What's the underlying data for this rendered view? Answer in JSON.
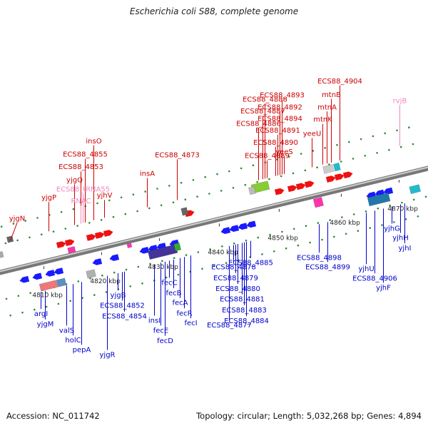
{
  "title": "Escherichia coli S88, complete genome",
  "footer": {
    "accession": "Accession: NC_011742",
    "stats": "Topology: circular; Length: 5,032,268 bp; Genes: 4,894"
  },
  "colors": {
    "forward_label": "#cc0000",
    "reverse_label": "#0000cc",
    "rna_label": "#ee88bb",
    "axis": "#888888"
  },
  "ticks": [
    {
      "label": "4810 kbp",
      "t": 0.1
    },
    {
      "label": "4820 kbp",
      "t": 0.235
    },
    {
      "label": "4830 kbp",
      "t": 0.37
    },
    {
      "label": "4840 kbp",
      "t": 0.51
    },
    {
      "label": "4850 kbp",
      "t": 0.65
    },
    {
      "label": "4860 kbp",
      "t": 0.795
    },
    {
      "label": "4870 kbp",
      "t": 0.93
    }
  ],
  "forward_labels": [
    {
      "text": "yjgN",
      "t": 0.04
    },
    {
      "text": "yjgP",
      "t": 0.13
    },
    {
      "text": "yjgQ",
      "t": 0.19
    },
    {
      "text": "ECS88_4853",
      "t": 0.205
    },
    {
      "text": "ECS88_4855",
      "t": 0.215
    },
    {
      "text": "insO",
      "t": 0.235
    },
    {
      "text": "yjhV",
      "t": 0.26
    },
    {
      "text": "insA",
      "t": 0.36
    },
    {
      "text": "ECS88_4873",
      "t": 0.43
    },
    {
      "text": "ECS88_4894",
      "t": 0.67
    },
    {
      "text": "ECS88_4891",
      "t": 0.665
    },
    {
      "text": "ECS88_4890",
      "t": 0.66
    },
    {
      "text": "yeeS",
      "t": 0.68
    },
    {
      "text": "ECS88_4889",
      "t": 0.64
    },
    {
      "text": "ECS88_4888",
      "t": 0.635
    },
    {
      "text": "ECS88_4893",
      "t": 0.675
    },
    {
      "text": "ECS88_4887",
      "t": 0.63
    },
    {
      "text": "ECS88_4892",
      "t": 0.67
    },
    {
      "text": "ECS88_4886",
      "t": 0.62
    },
    {
      "text": "mtnA",
      "t": 0.78
    },
    {
      "text": "mtnK",
      "t": 0.77
    },
    {
      "text": "yeeU",
      "t": 0.745
    },
    {
      "text": "mtnB",
      "t": 0.79
    },
    {
      "text": "ECS88_4904",
      "t": 0.81
    }
  ],
  "rna_labels": [
    {
      "text": "RNAC",
      "t": 0.205
    },
    {
      "text": "ECS88_tRNA55",
      "t": 0.21
    },
    {
      "text": "rvjB",
      "t": 0.95
    }
  ],
  "reverse_labels": [
    {
      "text": "argI",
      "t": 0.08
    },
    {
      "text": "yjgM",
      "t": 0.09
    },
    {
      "text": "valS",
      "t": 0.14
    },
    {
      "text": "holC",
      "t": 0.155
    },
    {
      "text": "pepA",
      "t": 0.175
    },
    {
      "text": "yjgR",
      "t": 0.235
    },
    {
      "text": "yjgB",
      "t": 0.26
    },
    {
      "text": "ECS88_4852",
      "t": 0.27
    },
    {
      "text": "ECS88_4854",
      "t": 0.275
    },
    {
      "text": "insI",
      "t": 0.345
    },
    {
      "text": "fecE",
      "t": 0.36
    },
    {
      "text": "fecD",
      "t": 0.37
    },
    {
      "text": "fecC",
      "t": 0.38
    },
    {
      "text": "fecB",
      "t": 0.39
    },
    {
      "text": "fecA",
      "t": 0.405
    },
    {
      "text": "fecR",
      "t": 0.415
    },
    {
      "text": "fecI",
      "t": 0.43
    },
    {
      "text": "ECS88_4877",
      "t": 0.52
    },
    {
      "text": "ECS88_4878",
      "t": 0.53
    },
    {
      "text": "ECS88_4879",
      "t": 0.535
    },
    {
      "text": "ECS88_4880",
      "t": 0.54
    },
    {
      "text": "ECS88_4881",
      "t": 0.55
    },
    {
      "text": "ECS88_4883",
      "t": 0.555
    },
    {
      "text": "ECS88_4884",
      "t": 0.56
    },
    {
      "text": "ECS88_4885",
      "t": 0.57
    },
    {
      "text": "ECS88_4898",
      "t": 0.73
    },
    {
      "text": "ECS88_4899",
      "t": 0.75
    },
    {
      "text": "yjhU",
      "t": 0.84
    },
    {
      "text": "ECS88_4906",
      "t": 0.86
    },
    {
      "text": "yjhF",
      "t": 0.88
    },
    {
      "text": "yjhG",
      "t": 0.9
    },
    {
      "text": "yjhH",
      "t": 0.92
    },
    {
      "text": "yjhI",
      "t": 0.93
    }
  ]
}
